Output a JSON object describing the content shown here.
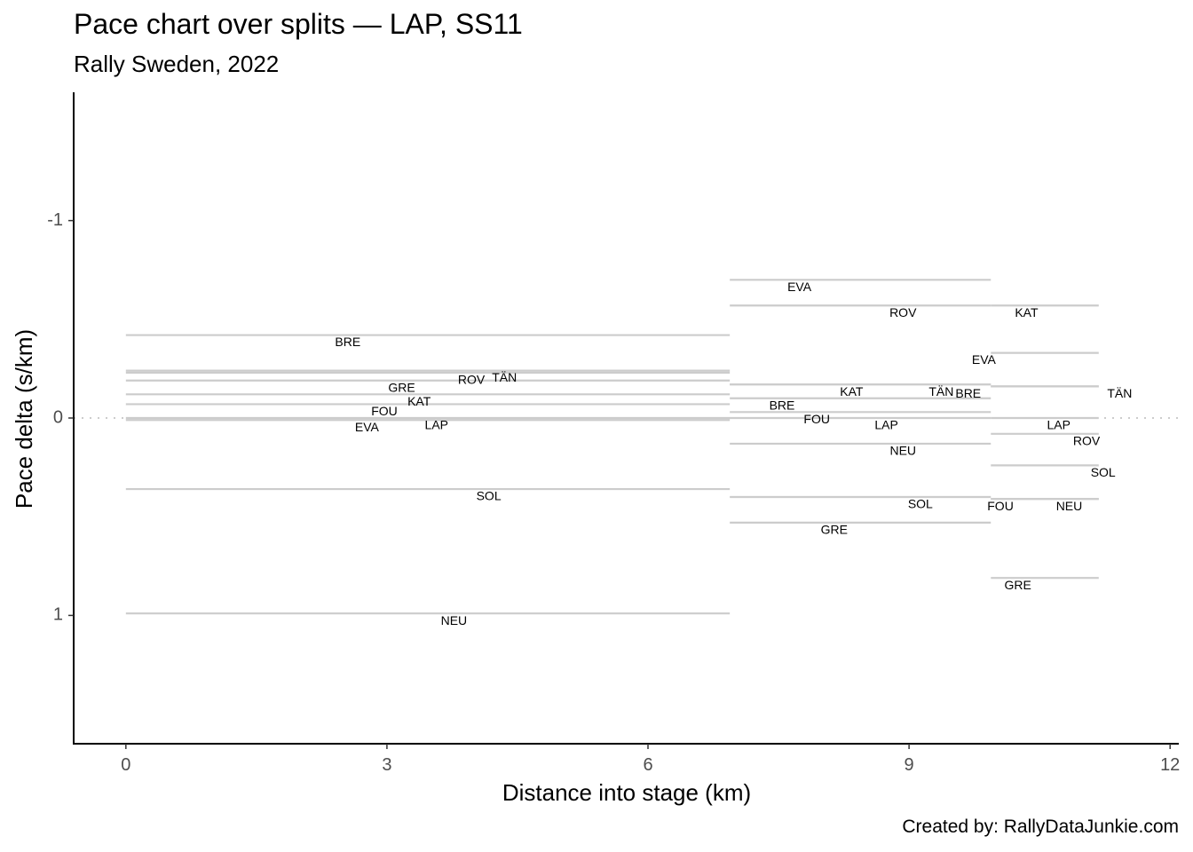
{
  "title": "Pace chart over splits — LAP, SS11",
  "subtitle": "Rally Sweden, 2022",
  "caption": "Created by: RallyDataJunkie.com",
  "chart_data": {
    "type": "segment",
    "xlabel": "Distance into stage (km)",
    "ylabel": "Pace delta (s/km)",
    "xlim": [
      -0.6,
      12.1
    ],
    "ylim": [
      1.65,
      -1.65
    ],
    "y_reversed": true,
    "xticks": [
      0,
      3,
      6,
      9,
      12
    ],
    "xtick_labels": [
      "0",
      "3",
      "6",
      "9",
      "12"
    ],
    "yticks": [
      -1,
      0,
      1
    ],
    "ytick_labels": [
      "-1",
      "0",
      "1"
    ],
    "reference_line": 0,
    "splits": [
      {
        "start": 0,
        "end": 6.94,
        "segments": [
          {
            "driver": "BRE",
            "pace": -0.42
          },
          {
            "driver": "TÄN",
            "pace": -0.24
          },
          {
            "driver": "ROV",
            "pace": -0.23
          },
          {
            "driver": "GRE",
            "pace": -0.19
          },
          {
            "driver": "KAT",
            "pace": -0.12
          },
          {
            "driver": "FOU",
            "pace": -0.07
          },
          {
            "driver": "LAP",
            "pace": 0.0
          },
          {
            "driver": "EVA",
            "pace": 0.01
          },
          {
            "driver": "SOL",
            "pace": 0.36
          },
          {
            "driver": "NEU",
            "pace": 0.99
          }
        ]
      },
      {
        "start": 6.94,
        "end": 9.94,
        "segments": [
          {
            "driver": "EVA",
            "pace": -0.7
          },
          {
            "driver": "ROV",
            "pace": -0.57
          },
          {
            "driver": "KAT",
            "pace": -0.17
          },
          {
            "driver": "TÄN",
            "pace": -0.17
          },
          {
            "driver": "BRE",
            "pace": -0.1
          },
          {
            "driver": "FOU",
            "pace": -0.03
          },
          {
            "driver": "LAP",
            "pace": 0.0
          },
          {
            "driver": "NEU",
            "pace": 0.13
          },
          {
            "driver": "SOL",
            "pace": 0.4
          },
          {
            "driver": "GRE",
            "pace": 0.53
          }
        ]
      },
      {
        "start": 9.94,
        "end": 11.18,
        "segments": [
          {
            "driver": "KAT",
            "pace": -0.57
          },
          {
            "driver": "EVA",
            "pace": -0.33
          },
          {
            "driver": "BRE",
            "pace": -0.16
          },
          {
            "driver": "TÄN",
            "pace": -0.16
          },
          {
            "driver": "LAP",
            "pace": 0.0
          },
          {
            "driver": "ROV",
            "pace": 0.08
          },
          {
            "driver": "SOL",
            "pace": 0.24
          },
          {
            "driver": "FOU",
            "pace": 0.41
          },
          {
            "driver": "NEU",
            "pace": 0.41
          },
          {
            "driver": "GRE",
            "pace": 0.81
          }
        ]
      }
    ],
    "labels": [
      {
        "text": "BRE",
        "x": 2.55,
        "y": -0.38
      },
      {
        "text": "TÄN",
        "x": 4.35,
        "y": -0.2
      },
      {
        "text": "ROV",
        "x": 3.97,
        "y": -0.19
      },
      {
        "text": "GRE",
        "x": 3.17,
        "y": -0.15
      },
      {
        "text": "KAT",
        "x": 3.37,
        "y": -0.08
      },
      {
        "text": "FOU",
        "x": 2.97,
        "y": -0.03
      },
      {
        "text": "LAP",
        "x": 3.57,
        "y": 0.04
      },
      {
        "text": "EVA",
        "x": 2.77,
        "y": 0.05
      },
      {
        "text": "SOL",
        "x": 4.17,
        "y": 0.4
      },
      {
        "text": "NEU",
        "x": 3.77,
        "y": 1.03
      },
      {
        "text": "EVA",
        "x": 7.74,
        "y": -0.66
      },
      {
        "text": "ROV",
        "x": 8.93,
        "y": -0.53
      },
      {
        "text": "KAT",
        "x": 8.34,
        "y": -0.13
      },
      {
        "text": "TÄN",
        "x": 9.37,
        "y": -0.13
      },
      {
        "text": "BRE",
        "x": 7.54,
        "y": -0.06
      },
      {
        "text": "FOU",
        "x": 7.94,
        "y": 0.01
      },
      {
        "text": "LAP",
        "x": 8.74,
        "y": 0.04
      },
      {
        "text": "NEU",
        "x": 8.93,
        "y": 0.17
      },
      {
        "text": "SOL",
        "x": 9.13,
        "y": 0.44
      },
      {
        "text": "GRE",
        "x": 8.14,
        "y": 0.57
      },
      {
        "text": "KAT",
        "x": 10.35,
        "y": -0.53
      },
      {
        "text": "EVA",
        "x": 9.86,
        "y": -0.29
      },
      {
        "text": "BRE",
        "x": 9.68,
        "y": -0.12
      },
      {
        "text": "TÄN",
        "x": 11.42,
        "y": -0.12
      },
      {
        "text": "LAP",
        "x": 10.72,
        "y": 0.04
      },
      {
        "text": "ROV",
        "x": 11.04,
        "y": 0.12
      },
      {
        "text": "SOL",
        "x": 11.23,
        "y": 0.28
      },
      {
        "text": "FOU",
        "x": 10.05,
        "y": 0.45
      },
      {
        "text": "NEU",
        "x": 10.84,
        "y": 0.45
      },
      {
        "text": "GRE",
        "x": 10.25,
        "y": 0.85
      }
    ],
    "colors": {
      "segment": "#cccccc",
      "reference": "#cccccc",
      "axis": "#000000"
    }
  }
}
